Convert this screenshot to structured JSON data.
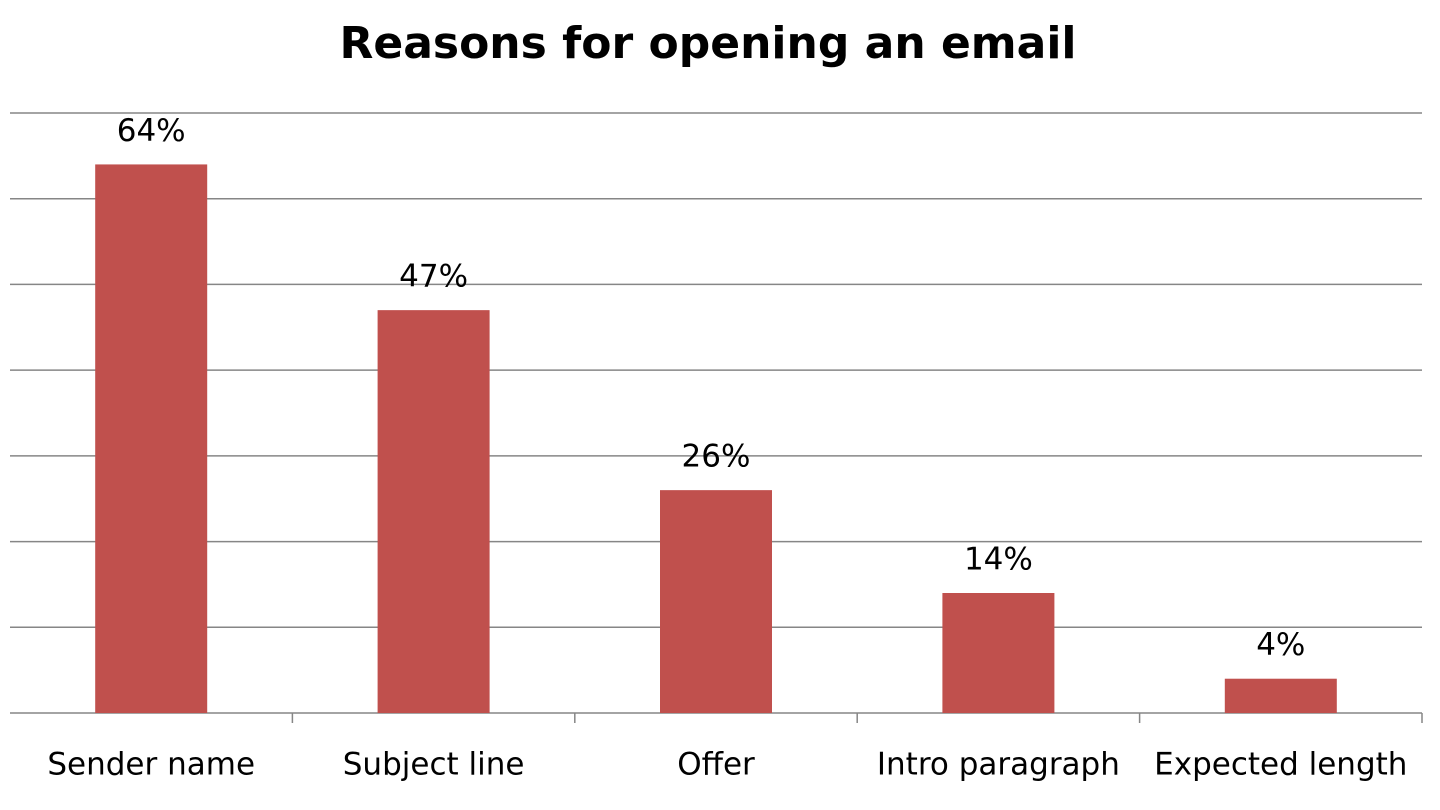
{
  "chart_data": {
    "type": "bar",
    "title": "Reasons for opening an email",
    "categories": [
      "Sender name",
      "Subject line",
      "Offer",
      "Intro paragraph",
      "Expected length"
    ],
    "values": [
      64,
      47,
      26,
      14,
      4
    ],
    "value_labels": [
      "64%",
      "47%",
      "26%",
      "14%",
      "4%"
    ],
    "color": "#c0504d",
    "ylim": [
      0,
      70
    ],
    "yticks": [
      0,
      10,
      20,
      30,
      40,
      50,
      60,
      70
    ],
    "grid": true
  }
}
